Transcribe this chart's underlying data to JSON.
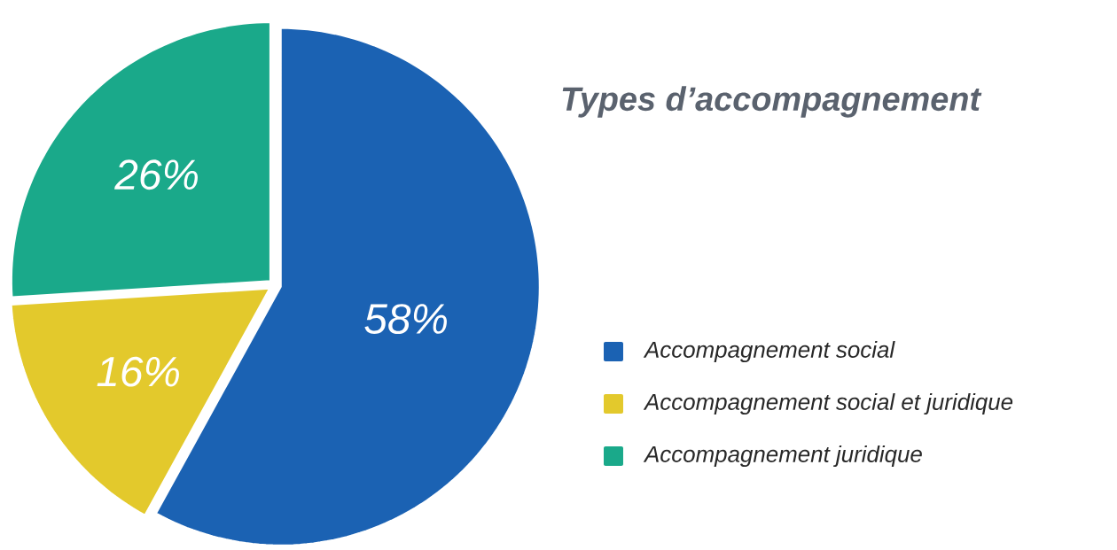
{
  "chart_data": {
    "type": "pie",
    "title": "Types d’accompagnement",
    "categories": [
      "Accompagnement social",
      "Accompagnement social et juridique",
      "Accompagnement juridique"
    ],
    "values": [
      58,
      16,
      26
    ],
    "colors": [
      "#1b62b3",
      "#e3c92c",
      "#1aa98a"
    ],
    "value_labels": [
      "58%",
      "16%",
      "26%"
    ],
    "legend": "right"
  }
}
